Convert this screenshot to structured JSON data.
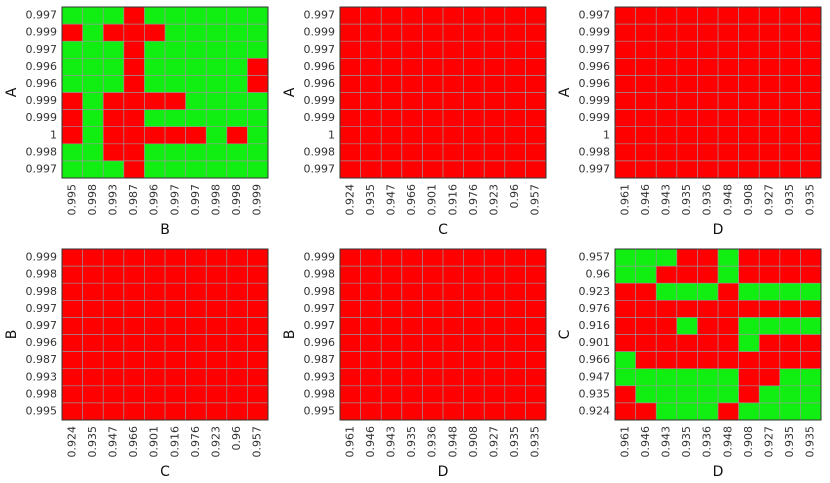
{
  "chart_data": [
    {
      "type": "heatmap",
      "xlabel": "B",
      "ylabel": "A",
      "xcategories": [
        "0.995",
        "0.998",
        "0.993",
        "0.987",
        "0.996",
        "0.997",
        "0.997",
        "0.998",
        "0.998",
        "0.999"
      ],
      "ycategories": [
        "0.997",
        "0.999",
        "0.997",
        "0.996",
        "0.996",
        "0.999",
        "0.999",
        "1",
        "0.998",
        "0.997"
      ],
      "colors": [
        "#ff0000",
        "#11ee11"
      ],
      "values": [
        [
          1,
          1,
          1,
          0,
          1,
          1,
          1,
          1,
          1,
          1
        ],
        [
          0,
          1,
          0,
          0,
          0,
          1,
          1,
          1,
          1,
          1
        ],
        [
          1,
          1,
          1,
          0,
          1,
          1,
          1,
          1,
          1,
          1
        ],
        [
          1,
          1,
          1,
          0,
          1,
          1,
          1,
          1,
          1,
          0
        ],
        [
          1,
          1,
          1,
          0,
          1,
          1,
          1,
          1,
          1,
          0
        ],
        [
          0,
          1,
          0,
          0,
          0,
          0,
          1,
          1,
          1,
          1
        ],
        [
          0,
          1,
          0,
          0,
          1,
          1,
          1,
          1,
          1,
          1
        ],
        [
          0,
          1,
          0,
          0,
          0,
          0,
          0,
          1,
          0,
          1
        ],
        [
          1,
          1,
          0,
          0,
          1,
          1,
          1,
          1,
          1,
          1
        ],
        [
          1,
          1,
          1,
          0,
          1,
          1,
          1,
          1,
          1,
          1
        ]
      ]
    },
    {
      "type": "heatmap",
      "xlabel": "C",
      "ylabel": "A",
      "xcategories": [
        "0.924",
        "0.935",
        "0.947",
        "0.966",
        "0.901",
        "0.916",
        "0.976",
        "0.923",
        "0.96",
        "0.957"
      ],
      "ycategories": [
        "0.997",
        "0.999",
        "0.997",
        "0.996",
        "0.996",
        "0.999",
        "0.999",
        "1",
        "0.998",
        "0.997"
      ],
      "colors": [
        "#ff0000",
        "#11ee11"
      ],
      "values": [
        [
          0,
          0,
          0,
          0,
          0,
          0,
          0,
          0,
          0,
          0
        ],
        [
          0,
          0,
          0,
          0,
          0,
          0,
          0,
          0,
          0,
          0
        ],
        [
          0,
          0,
          0,
          0,
          0,
          0,
          0,
          0,
          0,
          0
        ],
        [
          0,
          0,
          0,
          0,
          0,
          0,
          0,
          0,
          0,
          0
        ],
        [
          0,
          0,
          0,
          0,
          0,
          0,
          0,
          0,
          0,
          0
        ],
        [
          0,
          0,
          0,
          0,
          0,
          0,
          0,
          0,
          0,
          0
        ],
        [
          0,
          0,
          0,
          0,
          0,
          0,
          0,
          0,
          0,
          0
        ],
        [
          0,
          0,
          0,
          0,
          0,
          0,
          0,
          0,
          0,
          0
        ],
        [
          0,
          0,
          0,
          0,
          0,
          0,
          0,
          0,
          0,
          0
        ],
        [
          0,
          0,
          0,
          0,
          0,
          0,
          0,
          0,
          0,
          0
        ]
      ]
    },
    {
      "type": "heatmap",
      "xlabel": "D",
      "ylabel": "A",
      "xcategories": [
        "0.961",
        "0.946",
        "0.943",
        "0.935",
        "0.936",
        "0.948",
        "0.908",
        "0.927",
        "0.935",
        "0.935"
      ],
      "ycategories": [
        "0.997",
        "0.999",
        "0.997",
        "0.996",
        "0.996",
        "0.999",
        "0.999",
        "1",
        "0.998",
        "0.997"
      ],
      "colors": [
        "#ff0000",
        "#11ee11"
      ],
      "values": [
        [
          0,
          0,
          0,
          0,
          0,
          0,
          0,
          0,
          0,
          0
        ],
        [
          0,
          0,
          0,
          0,
          0,
          0,
          0,
          0,
          0,
          0
        ],
        [
          0,
          0,
          0,
          0,
          0,
          0,
          0,
          0,
          0,
          0
        ],
        [
          0,
          0,
          0,
          0,
          0,
          0,
          0,
          0,
          0,
          0
        ],
        [
          0,
          0,
          0,
          0,
          0,
          0,
          0,
          0,
          0,
          0
        ],
        [
          0,
          0,
          0,
          0,
          0,
          0,
          0,
          0,
          0,
          0
        ],
        [
          0,
          0,
          0,
          0,
          0,
          0,
          0,
          0,
          0,
          0
        ],
        [
          0,
          0,
          0,
          0,
          0,
          0,
          0,
          0,
          0,
          0
        ],
        [
          0,
          0,
          0,
          0,
          0,
          0,
          0,
          0,
          0,
          0
        ],
        [
          0,
          0,
          0,
          0,
          0,
          0,
          0,
          0,
          0,
          0
        ]
      ]
    },
    {
      "type": "heatmap",
      "xlabel": "C",
      "ylabel": "B",
      "xcategories": [
        "0.924",
        "0.935",
        "0.947",
        "0.966",
        "0.901",
        "0.916",
        "0.976",
        "0.923",
        "0.96",
        "0.957"
      ],
      "ycategories": [
        "0.999",
        "0.998",
        "0.998",
        "0.997",
        "0.997",
        "0.996",
        "0.987",
        "0.993",
        "0.998",
        "0.995"
      ],
      "colors": [
        "#ff0000",
        "#11ee11"
      ],
      "values": [
        [
          0,
          0,
          0,
          0,
          0,
          0,
          0,
          0,
          0,
          0
        ],
        [
          0,
          0,
          0,
          0,
          0,
          0,
          0,
          0,
          0,
          0
        ],
        [
          0,
          0,
          0,
          0,
          0,
          0,
          0,
          0,
          0,
          0
        ],
        [
          0,
          0,
          0,
          0,
          0,
          0,
          0,
          0,
          0,
          0
        ],
        [
          0,
          0,
          0,
          0,
          0,
          0,
          0,
          0,
          0,
          0
        ],
        [
          0,
          0,
          0,
          0,
          0,
          0,
          0,
          0,
          0,
          0
        ],
        [
          0,
          0,
          0,
          0,
          0,
          0,
          0,
          0,
          0,
          0
        ],
        [
          0,
          0,
          0,
          0,
          0,
          0,
          0,
          0,
          0,
          0
        ],
        [
          0,
          0,
          0,
          0,
          0,
          0,
          0,
          0,
          0,
          0
        ],
        [
          0,
          0,
          0,
          0,
          0,
          0,
          0,
          0,
          0,
          0
        ]
      ]
    },
    {
      "type": "heatmap",
      "xlabel": "D",
      "ylabel": "B",
      "xcategories": [
        "0.961",
        "0.946",
        "0.943",
        "0.935",
        "0.936",
        "0.948",
        "0.908",
        "0.927",
        "0.935",
        "0.935"
      ],
      "ycategories": [
        "0.999",
        "0.998",
        "0.998",
        "0.997",
        "0.997",
        "0.996",
        "0.987",
        "0.993",
        "0.998",
        "0.995"
      ],
      "colors": [
        "#ff0000",
        "#11ee11"
      ],
      "values": [
        [
          0,
          0,
          0,
          0,
          0,
          0,
          0,
          0,
          0,
          0
        ],
        [
          0,
          0,
          0,
          0,
          0,
          0,
          0,
          0,
          0,
          0
        ],
        [
          0,
          0,
          0,
          0,
          0,
          0,
          0,
          0,
          0,
          0
        ],
        [
          0,
          0,
          0,
          0,
          0,
          0,
          0,
          0,
          0,
          0
        ],
        [
          0,
          0,
          0,
          0,
          0,
          0,
          0,
          0,
          0,
          0
        ],
        [
          0,
          0,
          0,
          0,
          0,
          0,
          0,
          0,
          0,
          0
        ],
        [
          0,
          0,
          0,
          0,
          0,
          0,
          0,
          0,
          0,
          0
        ],
        [
          0,
          0,
          0,
          0,
          0,
          0,
          0,
          0,
          0,
          0
        ],
        [
          0,
          0,
          0,
          0,
          0,
          0,
          0,
          0,
          0,
          0
        ],
        [
          0,
          0,
          0,
          0,
          0,
          0,
          0,
          0,
          0,
          0
        ]
      ]
    },
    {
      "type": "heatmap",
      "xlabel": "D",
      "ylabel": "C",
      "xcategories": [
        "0.961",
        "0.946",
        "0.943",
        "0.935",
        "0.936",
        "0.948",
        "0.908",
        "0.927",
        "0.935",
        "0.935"
      ],
      "ycategories": [
        "0.957",
        "0.96",
        "0.923",
        "0.976",
        "0.916",
        "0.901",
        "0.966",
        "0.947",
        "0.935",
        "0.924"
      ],
      "colors": [
        "#ff0000",
        "#11ee11"
      ],
      "values": [
        [
          1,
          1,
          1,
          0,
          0,
          1,
          0,
          0,
          0,
          0
        ],
        [
          1,
          1,
          0,
          0,
          0,
          1,
          0,
          0,
          0,
          0
        ],
        [
          0,
          0,
          1,
          1,
          1,
          0,
          1,
          1,
          1,
          1
        ],
        [
          0,
          0,
          0,
          0,
          0,
          0,
          0,
          0,
          0,
          0
        ],
        [
          0,
          0,
          0,
          1,
          0,
          0,
          1,
          1,
          1,
          1
        ],
        [
          0,
          0,
          0,
          0,
          0,
          0,
          1,
          0,
          0,
          0
        ],
        [
          1,
          0,
          0,
          0,
          0,
          0,
          0,
          0,
          0,
          0
        ],
        [
          1,
          1,
          1,
          1,
          1,
          1,
          0,
          0,
          1,
          1
        ],
        [
          0,
          1,
          1,
          1,
          1,
          1,
          0,
          1,
          1,
          1
        ],
        [
          0,
          0,
          1,
          1,
          1,
          0,
          1,
          1,
          1,
          1
        ]
      ]
    }
  ]
}
